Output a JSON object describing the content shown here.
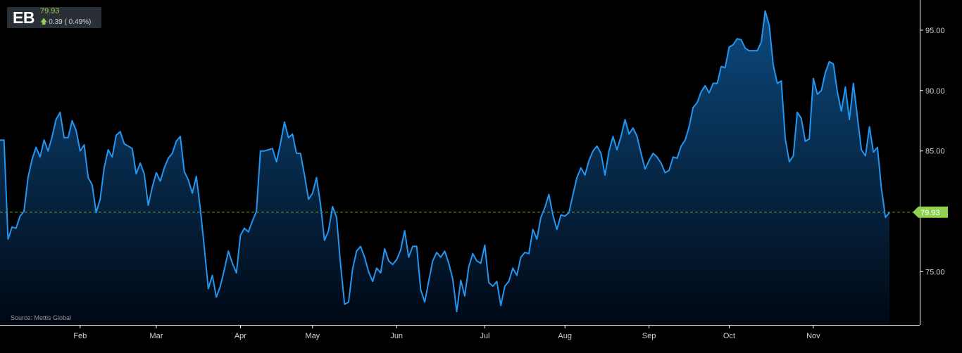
{
  "quote": {
    "symbol": "EB",
    "price": "79.93",
    "change": "0.39 ( 0.49%)",
    "direction": "up"
  },
  "source": "Source: Mettis Global",
  "colors": {
    "background": "#000000",
    "line": "#2196f3",
    "fill_top": "#0d4a7e",
    "fill_bottom": "#000814",
    "axis": "#ffffff",
    "last_price_badge": "#8fd14f",
    "up": "#8fd14f"
  },
  "chart_data": {
    "type": "area",
    "title": "",
    "xlabel": "",
    "ylabel": "",
    "y_axis_side": "right",
    "ylim": [
      70.6,
      97.5
    ],
    "yticks": [
      75,
      80,
      85,
      90,
      95
    ],
    "ytick_labels": [
      "75.00",
      "",
      "85.00",
      "90.00",
      "95.00"
    ],
    "x_tick_labels": [
      "Feb",
      "Mar",
      "Apr",
      "May",
      "Jun",
      "Jul",
      "Aug",
      "Sep",
      "Oct",
      "Nov"
    ],
    "x_tick_index": [
      20,
      39,
      60,
      78,
      99,
      121,
      141,
      162,
      182,
      203
    ],
    "last_price": 79.93,
    "last_price_label": "79.93",
    "grid": false,
    "series": [
      {
        "values": [
          85.9,
          85.9,
          77.7,
          78.7,
          78.6,
          79.6,
          80.0,
          82.8,
          84.3,
          85.3,
          84.5,
          85.9,
          85.0,
          86.2,
          87.6,
          88.2,
          86.1,
          86.1,
          87.5,
          86.7,
          85.0,
          85.5,
          82.8,
          82.2,
          79.9,
          81.0,
          83.6,
          85.1,
          84.5,
          86.3,
          86.6,
          85.6,
          85.4,
          85.2,
          83.1,
          84.0,
          83.1,
          80.5,
          82.0,
          83.2,
          82.5,
          83.6,
          84.4,
          84.8,
          85.8,
          86.2,
          83.3,
          82.6,
          81.5,
          82.9,
          80.2,
          77.0,
          73.6,
          74.7,
          72.9,
          73.8,
          75.2,
          76.7,
          75.7,
          74.9,
          78.0,
          78.6,
          78.3,
          79.2,
          80.0,
          85.0,
          85.0,
          85.1,
          85.2,
          84.1,
          85.6,
          87.4,
          86.1,
          86.4,
          84.8,
          84.8,
          83.0,
          81.0,
          81.5,
          82.8,
          80.6,
          77.6,
          78.4,
          80.4,
          79.5,
          75.6,
          72.3,
          72.5,
          75.2,
          76.7,
          77.1,
          76.2,
          75.0,
          74.2,
          75.3,
          74.9,
          76.9,
          75.9,
          75.6,
          76.0,
          76.8,
          78.4,
          76.2,
          77.1,
          77.1,
          73.5,
          72.5,
          74.2,
          75.9,
          76.6,
          76.2,
          76.7,
          75.7,
          74.4,
          71.7,
          74.3,
          73.0,
          75.4,
          76.5,
          75.9,
          75.7,
          77.2,
          74.1,
          73.8,
          74.2,
          72.2,
          73.8,
          74.2,
          75.3,
          74.7,
          76.2,
          76.6,
          76.5,
          78.5,
          77.7,
          79.5,
          80.3,
          81.4,
          79.7,
          78.5,
          79.7,
          79.6,
          79.9,
          81.4,
          82.8,
          83.6,
          83.0,
          84.2,
          85.0,
          85.4,
          84.8,
          83.0,
          85.0,
          86.2,
          85.1,
          86.2,
          87.6,
          86.4,
          86.9,
          86.2,
          84.8,
          83.5,
          84.2,
          84.8,
          84.5,
          84.0,
          83.2,
          83.4,
          84.5,
          84.4,
          85.4,
          85.9,
          87.0,
          88.6,
          89.0,
          89.9,
          90.4,
          89.8,
          90.6,
          90.6,
          92.0,
          91.9,
          93.6,
          93.8,
          94.3,
          94.2,
          93.5,
          93.3,
          93.3,
          93.3,
          94.0,
          96.6,
          95.4,
          92.1,
          90.6,
          90.8,
          86.0,
          84.1,
          84.6,
          88.2,
          87.7,
          85.8,
          86.0,
          91.0,
          89.7,
          90.0,
          91.5,
          92.4,
          92.2,
          89.9,
          88.3,
          90.3,
          87.6,
          90.6,
          87.8,
          85.1,
          84.6,
          87.0,
          84.9,
          85.3,
          81.9,
          79.5,
          79.9
        ]
      }
    ]
  }
}
